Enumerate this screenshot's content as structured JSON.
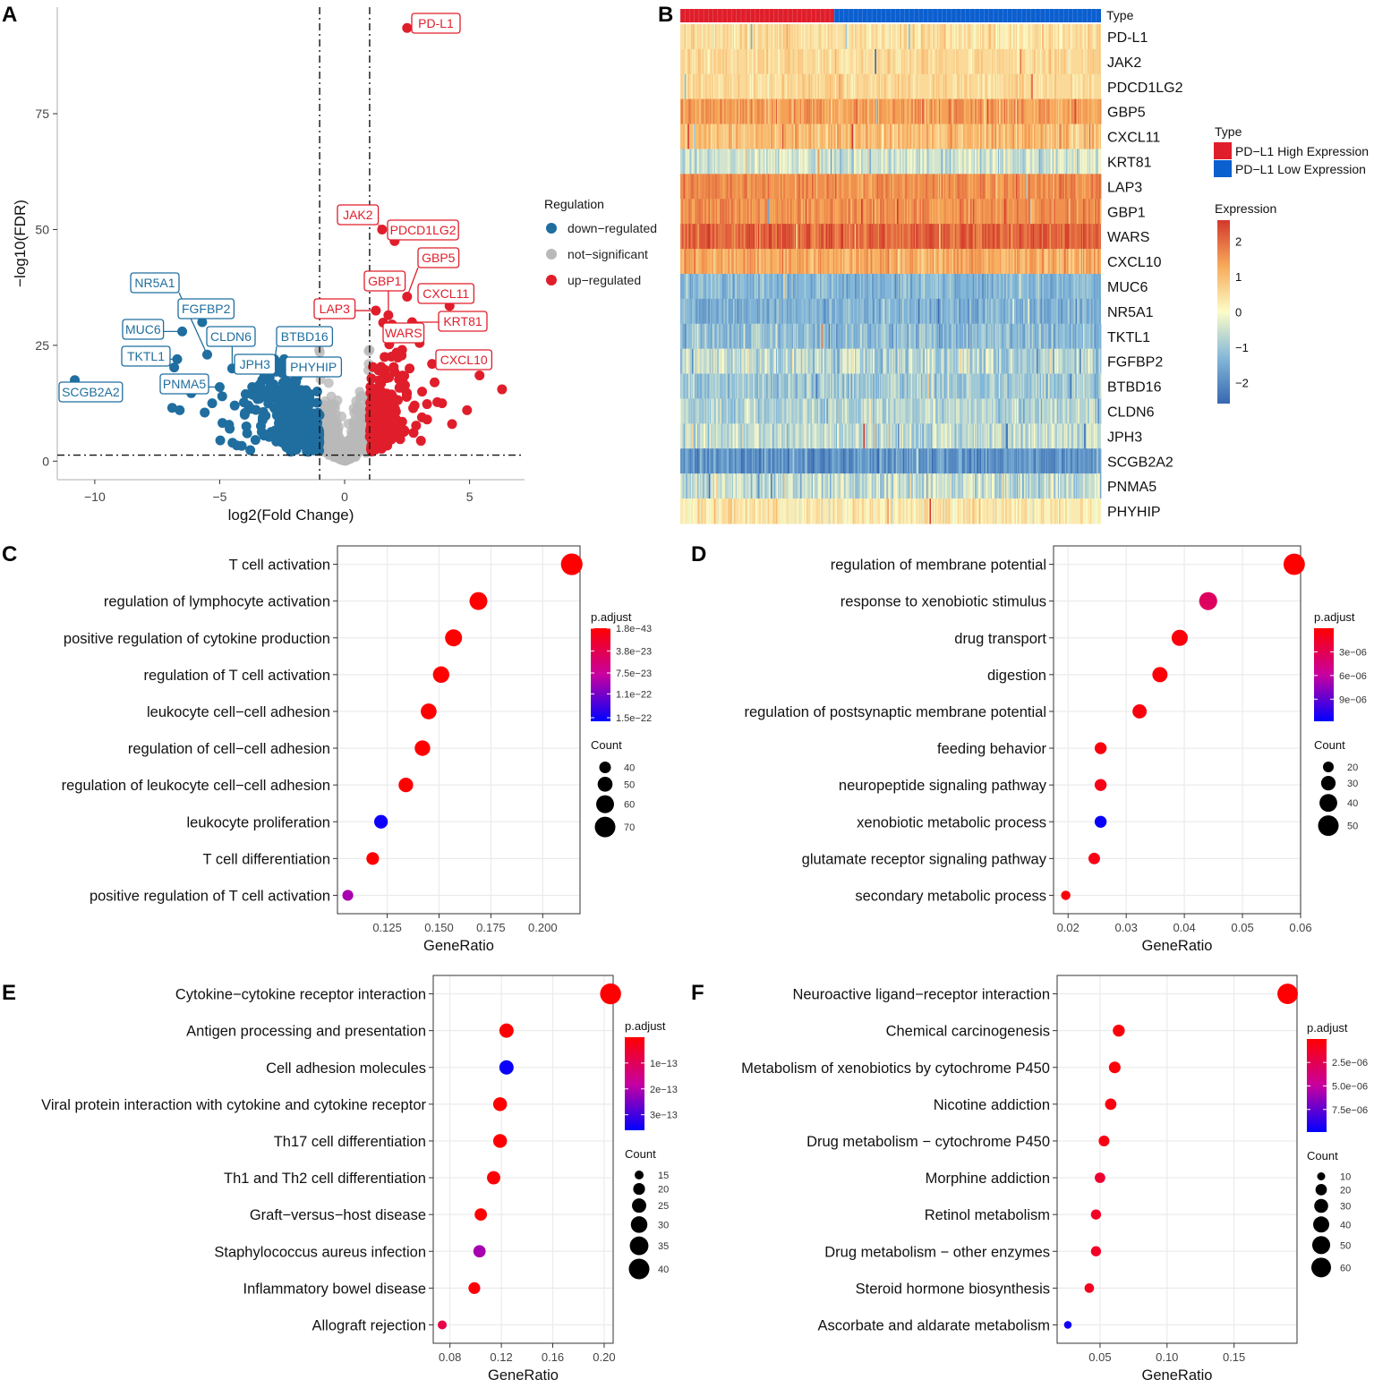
{
  "figure": {
    "panel_letters": [
      "A",
      "B",
      "C",
      "D",
      "E",
      "F"
    ]
  },
  "colors": {
    "up": "#e01e2b",
    "down": "#1f6e9f",
    "ns": "#b9b9b9",
    "high": "#e01e2b",
    "low": "#0b5fcf",
    "panel_bg": "#ebebeb"
  },
  "chart_data": [
    {
      "panel": "A",
      "type": "scatter",
      "title": "",
      "xlabel": "log2(Fold Change)",
      "ylabel": "−log10(FDR)",
      "xlim": [
        -11.5,
        7.2
      ],
      "ylim": [
        -4,
        98
      ],
      "xticks": [
        -10,
        -5,
        0,
        5
      ],
      "xtick_labels": [
        "−10",
        "−5",
        "0",
        "5"
      ],
      "yticks": [
        0,
        25,
        50,
        75
      ],
      "thresholds": {
        "log2fc": [
          -1,
          1
        ],
        "fdr": 1.3
      },
      "legend": {
        "title": "Regulation",
        "entries": [
          {
            "label": "down−regulated",
            "color": "#1f6e9f"
          },
          {
            "label": "not−significant",
            "color": "#b9b9b9"
          },
          {
            "label": "up−regulated",
            "color": "#e01e2b"
          }
        ]
      },
      "labeled_genes": [
        {
          "gene": "PD-L1",
          "x": 2.5,
          "y": 93.5,
          "group": "up"
        },
        {
          "gene": "JAK2",
          "x": 1.5,
          "y": 50.0,
          "group": "up"
        },
        {
          "gene": "PDCD1LG2",
          "x": 2.0,
          "y": 47.5,
          "group": "up"
        },
        {
          "gene": "GBP5",
          "x": 2.5,
          "y": 35.5,
          "group": "up"
        },
        {
          "gene": "GBP1",
          "x": 1.75,
          "y": 31.5,
          "group": "up"
        },
        {
          "gene": "CXCL11",
          "x": 4.2,
          "y": 33.5,
          "group": "up"
        },
        {
          "gene": "LAP3",
          "x": 1.25,
          "y": 32.5,
          "group": "up"
        },
        {
          "gene": "KRT81",
          "x": 2.7,
          "y": 30.0,
          "group": "up"
        },
        {
          "gene": "WARS",
          "x": 2.0,
          "y": 27.5,
          "group": "up"
        },
        {
          "gene": "CXCL10",
          "x": 3.5,
          "y": 21.0,
          "group": "up"
        },
        {
          "gene": "NR5A1",
          "x": -5.5,
          "y": 23.0,
          "group": "down"
        },
        {
          "gene": "FGFBP2",
          "x": -5.7,
          "y": 30.0,
          "group": "down"
        },
        {
          "gene": "MUC6",
          "x": -6.5,
          "y": 28.0,
          "group": "down"
        },
        {
          "gene": "CLDN6",
          "x": -4.5,
          "y": 20.0,
          "group": "down"
        },
        {
          "gene": "BTBD16",
          "x": -2.8,
          "y": 21.5,
          "group": "down"
        },
        {
          "gene": "JPH3",
          "x": -3.3,
          "y": 17.5,
          "group": "down"
        },
        {
          "gene": "PHYHIP",
          "x": -2.5,
          "y": 19.0,
          "group": "down"
        },
        {
          "gene": "TKTL1",
          "x": -6.7,
          "y": 22.0,
          "group": "down"
        },
        {
          "gene": "PNMA5",
          "x": -5.0,
          "y": 16.0,
          "group": "down"
        },
        {
          "gene": "SCGB2A2",
          "x": -10.8,
          "y": 17.5,
          "group": "down"
        }
      ],
      "extra_points": [
        {
          "x": 5.4,
          "y": 18.5,
          "group": "up"
        },
        {
          "x": 6.3,
          "y": 15.5,
          "group": "up"
        },
        {
          "x": 4.9,
          "y": 11.0,
          "group": "up"
        },
        {
          "x": 4.3,
          "y": 8.0,
          "group": "up"
        },
        {
          "x": 3.6,
          "y": 17.0,
          "group": "up"
        },
        {
          "x": 3.1,
          "y": 15.0,
          "group": "up"
        },
        {
          "x": 2.8,
          "y": 12.0,
          "group": "up"
        },
        {
          "x": 3.9,
          "y": 12.5,
          "group": "up"
        },
        {
          "x": 2.3,
          "y": 24.0,
          "group": "up"
        },
        {
          "x": 1.8,
          "y": 26.0,
          "group": "up"
        },
        {
          "x": 2.6,
          "y": 20.0,
          "group": "up"
        },
        {
          "x": 3.3,
          "y": 9.0,
          "group": "up"
        },
        {
          "x": 2.4,
          "y": 6.5,
          "group": "up"
        },
        {
          "x": 1.9,
          "y": 29.5,
          "group": "up"
        },
        {
          "x": 1.6,
          "y": 22.5,
          "group": "up"
        },
        {
          "x": 3.0,
          "y": 25.5,
          "group": "up"
        },
        {
          "x": -6.9,
          "y": 11.5,
          "group": "down"
        },
        {
          "x": -6.6,
          "y": 11.0,
          "group": "down"
        },
        {
          "x": -5.3,
          "y": 12.5,
          "group": "down"
        },
        {
          "x": -5.6,
          "y": 10.5,
          "group": "down"
        },
        {
          "x": -4.9,
          "y": 14.0,
          "group": "down"
        },
        {
          "x": -4.4,
          "y": 12.0,
          "group": "down"
        },
        {
          "x": -4.0,
          "y": 10.0,
          "group": "down"
        },
        {
          "x": -3.7,
          "y": 16.0,
          "group": "down"
        },
        {
          "x": -4.6,
          "y": 7.0,
          "group": "down"
        },
        {
          "x": -3.4,
          "y": 13.5,
          "group": "down"
        },
        {
          "x": -3.0,
          "y": 18.0,
          "group": "down"
        },
        {
          "x": -2.2,
          "y": 17.0,
          "group": "down"
        },
        {
          "x": -1.4,
          "y": 14.5,
          "group": "down"
        },
        {
          "x": -2.6,
          "y": 14.0,
          "group": "down"
        },
        {
          "x": -3.9,
          "y": 6.0,
          "group": "down"
        },
        {
          "x": -1.7,
          "y": 6.0,
          "group": "down"
        }
      ],
      "clusters": {
        "up_points": 230,
        "down_points": 330,
        "ns_points": 520
      }
    },
    {
      "panel": "B",
      "type": "heatmap",
      "title": "",
      "annotation": {
        "label": "Type",
        "high_fraction": 0.365,
        "legend_title": "Type",
        "categories": [
          {
            "label": "PD−L1 High Expression",
            "color": "#e01e2b"
          },
          {
            "label": "PD−L1 Low Expression",
            "color": "#0b5fcf"
          }
        ]
      },
      "rows": [
        "PD-L1",
        "JAK2",
        "PDCD1LG2",
        "GBP5",
        "CXCL11",
        "KRT81",
        "LAP3",
        "GBP1",
        "WARS",
        "CXCL10",
        "MUC6",
        "NR5A1",
        "TKTL1",
        "FGFBP2",
        "BTBD16",
        "CLDN6",
        "JPH3",
        "SCGB2A2",
        "PNMA5",
        "PHYHIP"
      ],
      "row_means": [
        0.45,
        0.55,
        0.55,
        1.4,
        1.0,
        -0.45,
        1.6,
        1.6,
        2.1,
        1.2,
        -1.3,
        -1.4,
        -1.2,
        -0.7,
        -1.0,
        -0.8,
        -0.6,
        -1.9,
        -0.6,
        0.3
      ],
      "row_spread": [
        0.25,
        0.2,
        0.2,
        0.3,
        0.3,
        0.35,
        0.25,
        0.25,
        0.3,
        0.3,
        0.3,
        0.3,
        0.35,
        0.45,
        0.35,
        0.35,
        0.35,
        0.35,
        0.45,
        0.3
      ],
      "columns": 400,
      "color_scale": {
        "title": "Expression",
        "min": -2.6,
        "max": 2.6,
        "ticks": [
          2,
          1,
          0,
          -1,
          -2
        ],
        "tick_labels": [
          "2",
          "1",
          "0",
          "−1",
          "−2"
        ]
      }
    },
    {
      "panel": "C",
      "type": "scatter",
      "title": "",
      "xlabel": "GeneRatio",
      "xlim": [
        0.101,
        0.218
      ],
      "xticks": [
        0.125,
        0.15,
        0.175,
        0.2
      ],
      "xtick_labels": [
        "0.125",
        "0.150",
        "0.175",
        "0.200"
      ],
      "categories": [
        "T cell activation",
        "regulation of lymphocyte activation",
        "positive regulation of cytokine production",
        "regulation of T cell activation",
        "leukocyte cell−cell adhesion",
        "regulation of cell−cell adhesion",
        "regulation of leukocyte cell−cell adhesion",
        "leukocyte proliferation",
        "T cell differentiation",
        "positive regulation of T cell activation"
      ],
      "values": [
        0.214,
        0.169,
        0.157,
        0.151,
        0.145,
        0.142,
        0.134,
        0.122,
        0.118,
        0.106
      ],
      "count": [
        74,
        60,
        57,
        55,
        53,
        52,
        49,
        46,
        43,
        38
      ],
      "p_adjust": [
        1.9e-43,
        2.5e-27,
        5e-25,
        4e-26,
        3e-25,
        5e-26,
        1.5e-25,
        1.5e-22,
        3e-25,
        9e-23
      ],
      "color_legend": {
        "title": "p.adjust",
        "ticks": [
          1.8e-43,
          3.8e-23,
          7.5e-23,
          1.1e-22,
          1.5e-22
        ],
        "labels": [
          "1.8e−43",
          "3.8e−23",
          "7.5e−23",
          "1.1e−22",
          "1.5e−22"
        ],
        "min": 1e-45,
        "max": 1.56e-22
      },
      "size_legend": {
        "title": "Count",
        "sizes": [
          40,
          50,
          60,
          70
        ],
        "labels": [
          "40",
          "50",
          "60",
          "70"
        ]
      }
    },
    {
      "panel": "D",
      "type": "scatter",
      "title": "",
      "xlabel": "GeneRatio",
      "xlim": [
        0.0175,
        0.06
      ],
      "xticks": [
        0.02,
        0.03,
        0.04,
        0.05,
        0.06
      ],
      "xtick_labels": [
        "0.02",
        "0.03",
        "0.04",
        "0.05",
        "0.06"
      ],
      "categories": [
        "regulation of membrane potential",
        "response to xenobiotic stimulus",
        "drug transport",
        "digestion",
        "regulation of postsynaptic membrane potential",
        "feeding behavior",
        "neuropeptide signaling pathway",
        "xenobiotic metabolic process",
        "glutamate receptor signaling pathway",
        "secondary metabolic process"
      ],
      "values": [
        0.0589,
        0.0441,
        0.0392,
        0.0358,
        0.0323,
        0.0256,
        0.0256,
        0.0256,
        0.0245,
        0.0196
      ],
      "count": [
        53,
        41,
        35,
        32,
        29,
        23,
        23,
        23,
        22,
        17
      ],
      "p_adjust": [
        4e-08,
        3.5e-06,
        5e-07,
        3e-07,
        5e-07,
        5e-07,
        8e-07,
        1.15e-05,
        8e-07,
        5e-07
      ],
      "color_legend": {
        "title": "p.adjust",
        "ticks": [
          3e-06,
          6e-06,
          9e-06
        ],
        "labels": [
          "3e−06",
          "6e−06",
          "9e−06"
        ],
        "min": 1e-08,
        "max": 1.18e-05
      },
      "size_legend": {
        "title": "Count",
        "sizes": [
          20,
          30,
          40,
          50
        ],
        "labels": [
          "20",
          "30",
          "40",
          "50"
        ]
      }
    },
    {
      "panel": "E",
      "type": "scatter",
      "title": "",
      "xlabel": "GeneRatio",
      "xlim": [
        0.067,
        0.207
      ],
      "xticks": [
        0.08,
        0.12,
        0.16,
        0.2
      ],
      "xtick_labels": [
        "0.08",
        "0.12",
        "0.16",
        "0.20"
      ],
      "categories": [
        "Cytokine−cytokine receptor interaction",
        "Antigen processing and presentation",
        "Cell adhesion molecules",
        "Viral protein interaction with cytokine and cytokine receptor",
        "Th17 cell differentiation",
        "Th1 and Th2 cell differentiation",
        "Graft−versus−host disease",
        "Staphylococcus aureus infection",
        "Inflammatory bowel disease",
        "Allograft rejection"
      ],
      "values": [
        0.205,
        0.124,
        0.124,
        0.119,
        0.119,
        0.114,
        0.104,
        0.103,
        0.099,
        0.074
      ],
      "count": [
        41,
        25,
        25,
        24,
        24,
        23,
        21,
        21,
        20,
        15
      ],
      "p_adjust": [
        2e-16,
        3e-15,
        3.5e-13,
        2e-15,
        5e-15,
        1e-14,
        3e-15,
        2.1e-13,
        1e-14,
        8e-14
      ],
      "color_legend": {
        "title": "p.adjust",
        "ticks": [
          1e-13,
          2e-13,
          3e-13
        ],
        "labels": [
          "1e−13",
          "2e−13",
          "3e−13"
        ],
        "min": 1e-16,
        "max": 3.6e-13
      },
      "size_legend": {
        "title": "Count",
        "sizes": [
          15,
          20,
          25,
          30,
          35,
          40
        ],
        "labels": [
          "15",
          "20",
          "25",
          "30",
          "35",
          "40"
        ]
      }
    },
    {
      "panel": "F",
      "type": "scatter",
      "title": "",
      "xlabel": "GeneRatio",
      "xlim": [
        0.018,
        0.197
      ],
      "xticks": [
        0.05,
        0.1,
        0.15
      ],
      "xtick_labels": [
        "0.05",
        "0.10",
        "0.15"
      ],
      "categories": [
        "Neuroactive ligand−receptor interaction",
        "Chemical carcinogenesis",
        "Metabolism of xenobiotics by cytochrome P450",
        "Nicotine addiction",
        "Drug metabolism − cytochrome P450",
        "Morphine addiction",
        "Retinol metabolism",
        "Drug metabolism − other enzymes",
        "Steroid hormone biosynthesis",
        "Ascorbate and aldarate metabolism"
      ],
      "values": [
        0.19,
        0.064,
        0.061,
        0.058,
        0.053,
        0.05,
        0.047,
        0.047,
        0.042,
        0.026
      ],
      "count": [
        65,
        22,
        21,
        20,
        18,
        17,
        16,
        16,
        14,
        9
      ],
      "p_adjust": [
        1e-07,
        3e-07,
        3e-07,
        5e-07,
        6e-07,
        1.5e-06,
        1.2e-06,
        1.2e-06,
        1e-06,
        9.5e-06
      ],
      "color_legend": {
        "title": "p.adjust",
        "ticks": [
          2.5e-06,
          5e-06,
          7.5e-06
        ],
        "labels": [
          "2.5e−06",
          "5.0e−06",
          "7.5e−06"
        ],
        "min": 1e-08,
        "max": 9.9e-06
      },
      "size_legend": {
        "title": "Count",
        "sizes": [
          10,
          20,
          30,
          40,
          50,
          60
        ],
        "labels": [
          "10",
          "20",
          "30",
          "40",
          "50",
          "60"
        ]
      }
    }
  ]
}
